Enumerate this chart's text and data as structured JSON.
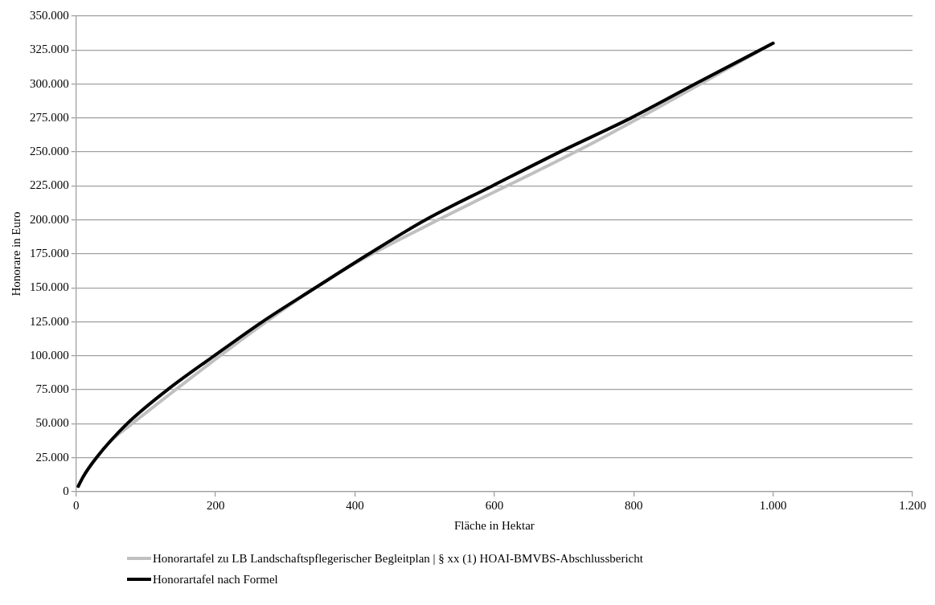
{
  "chart_data": {
    "type": "line",
    "xlabel": "Fläche in Hektar",
    "ylabel": "Honorare in Euro",
    "xlim": [
      0,
      1200
    ],
    "xticks": [
      0,
      200,
      400,
      600,
      800,
      {
        "value": 1000,
        "label": "1.000"
      },
      {
        "value": 1200,
        "label": "1.200"
      }
    ],
    "ylim": [
      0,
      350000
    ],
    "yticks": [
      0,
      {
        "value": 25000,
        "label": "25.000"
      },
      {
        "value": 50000,
        "label": "50.000"
      },
      {
        "value": 75000,
        "label": "75.000"
      },
      {
        "value": 100000,
        "label": "100.000"
      },
      {
        "value": 125000,
        "label": "125.000"
      },
      {
        "value": 150000,
        "label": "150.000"
      },
      {
        "value": 175000,
        "label": "175.000"
      },
      {
        "value": 200000,
        "label": "200.000"
      },
      {
        "value": 225000,
        "label": "225.000"
      },
      {
        "value": 250000,
        "label": "250.000"
      },
      {
        "value": 275000,
        "label": "275.000"
      },
      {
        "value": 300000,
        "label": "300.000"
      },
      {
        "value": 325000,
        "label": "325.000"
      },
      {
        "value": 350000,
        "label": "350.000"
      }
    ],
    "grid": "y",
    "legend": "bottom",
    "marker": "none",
    "line_style": "solid",
    "series": [
      {
        "name": "Honorartafel zu LB Landschaftspflegerischer Begleitplan | § xx (1) HOAI-BMVBS-Abschlussbericht",
        "color": "#c0c0c0",
        "x": [
          3,
          10,
          29,
          50,
          75,
          300,
          400,
          500,
          750,
          1000
        ],
        "values": [
          4000,
          11000,
          25000,
          37500,
          48000,
          135000,
          168000,
          195000,
          259000,
          330000
        ]
      },
      {
        "name": "Honorartafel nach Formel",
        "color": "#000000",
        "x": [
          3,
          10,
          29,
          73,
          131,
          198,
          267,
          343,
          420,
          501,
          597,
          694,
          796,
          888,
          1000
        ],
        "values": [
          4000,
          11000,
          25000,
          50000,
          75000,
          100000,
          125000,
          150000,
          175000,
          200000,
          225000,
          250000,
          275000,
          300000,
          330000
        ]
      }
    ]
  }
}
